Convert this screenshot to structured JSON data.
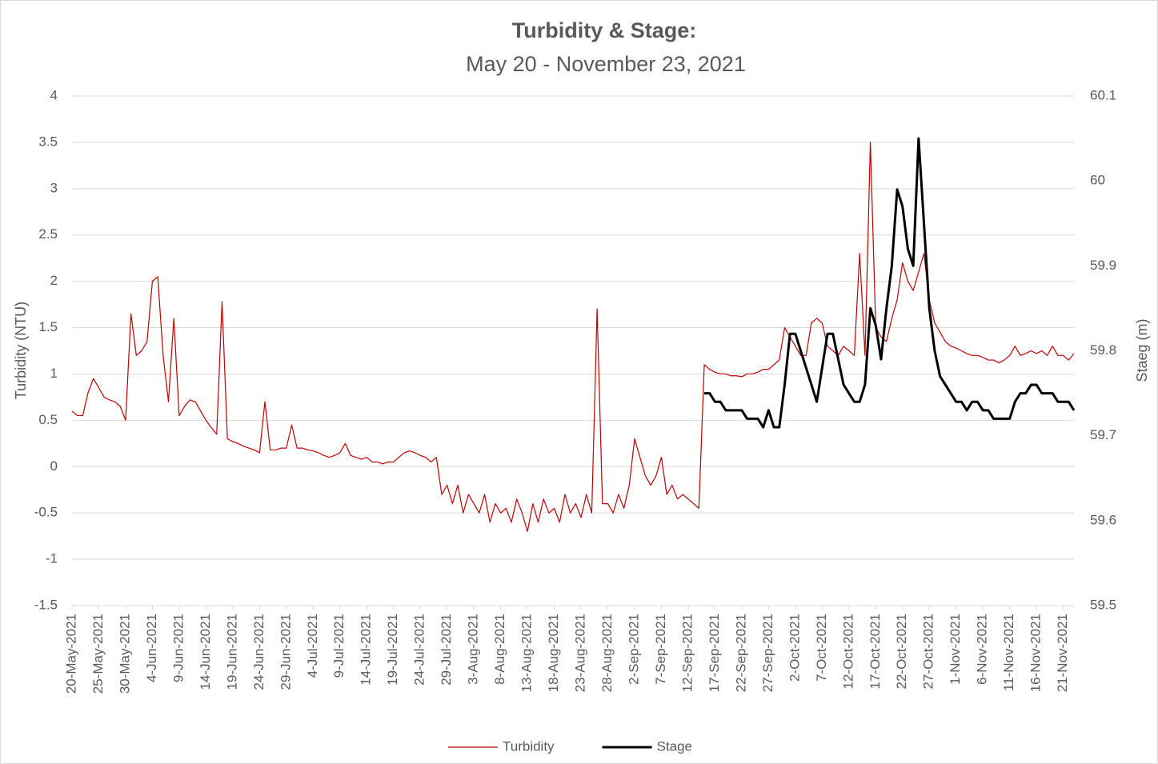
{
  "chart_data": {
    "type": "line",
    "title": "Turbidity & Stage:",
    "subtitle": "May 20 - November 23, 2021",
    "y_label": "Turbidity (NTU)",
    "y2_label": "Staeg (m)",
    "x": [
      "2021-05-20",
      "2021-05-21",
      "2021-05-22",
      "2021-05-23",
      "2021-05-24",
      "2021-05-25",
      "2021-05-26",
      "2021-05-27",
      "2021-05-28",
      "2021-05-29",
      "2021-05-30",
      "2021-05-31",
      "2021-06-01",
      "2021-06-02",
      "2021-06-03",
      "2021-06-04",
      "2021-06-05",
      "2021-06-06",
      "2021-06-07",
      "2021-06-08",
      "2021-06-09",
      "2021-06-10",
      "2021-06-11",
      "2021-06-12",
      "2021-06-13",
      "2021-06-14",
      "2021-06-15",
      "2021-06-16",
      "2021-06-17",
      "2021-06-18",
      "2021-06-19",
      "2021-06-20",
      "2021-06-21",
      "2021-06-22",
      "2021-06-23",
      "2021-06-24",
      "2021-06-25",
      "2021-06-26",
      "2021-06-27",
      "2021-06-28",
      "2021-06-29",
      "2021-06-30",
      "2021-07-01",
      "2021-07-02",
      "2021-07-03",
      "2021-07-04",
      "2021-07-05",
      "2021-07-06",
      "2021-07-07",
      "2021-07-08",
      "2021-07-09",
      "2021-07-10",
      "2021-07-11",
      "2021-07-12",
      "2021-07-13",
      "2021-07-14",
      "2021-07-15",
      "2021-07-16",
      "2021-07-17",
      "2021-07-18",
      "2021-07-19",
      "2021-07-20",
      "2021-07-21",
      "2021-07-22",
      "2021-07-23",
      "2021-07-24",
      "2021-07-25",
      "2021-07-26",
      "2021-07-27",
      "2021-07-28",
      "2021-07-29",
      "2021-07-30",
      "2021-07-31",
      "2021-08-01",
      "2021-08-02",
      "2021-08-03",
      "2021-08-04",
      "2021-08-05",
      "2021-08-06",
      "2021-08-07",
      "2021-08-08",
      "2021-08-09",
      "2021-08-10",
      "2021-08-11",
      "2021-08-12",
      "2021-08-13",
      "2021-08-14",
      "2021-08-15",
      "2021-08-16",
      "2021-08-17",
      "2021-08-18",
      "2021-08-19",
      "2021-08-20",
      "2021-08-21",
      "2021-08-22",
      "2021-08-23",
      "2021-08-24",
      "2021-08-25",
      "2021-08-26",
      "2021-08-27",
      "2021-08-28",
      "2021-08-29",
      "2021-08-30",
      "2021-08-31",
      "2021-09-01",
      "2021-09-02",
      "2021-09-03",
      "2021-09-04",
      "2021-09-05",
      "2021-09-06",
      "2021-09-07",
      "2021-09-08",
      "2021-09-09",
      "2021-09-10",
      "2021-09-11",
      "2021-09-12",
      "2021-09-13",
      "2021-09-14",
      "2021-09-15",
      "2021-09-16",
      "2021-09-17",
      "2021-09-18",
      "2021-09-19",
      "2021-09-20",
      "2021-09-21",
      "2021-09-22",
      "2021-09-23",
      "2021-09-24",
      "2021-09-25",
      "2021-09-26",
      "2021-09-27",
      "2021-09-28",
      "2021-09-29",
      "2021-09-30",
      "2021-10-01",
      "2021-10-02",
      "2021-10-03",
      "2021-10-04",
      "2021-10-05",
      "2021-10-06",
      "2021-10-07",
      "2021-10-08",
      "2021-10-09",
      "2021-10-10",
      "2021-10-11",
      "2021-10-12",
      "2021-10-13",
      "2021-10-14",
      "2021-10-15",
      "2021-10-16",
      "2021-10-17",
      "2021-10-18",
      "2021-10-19",
      "2021-10-20",
      "2021-10-21",
      "2021-10-22",
      "2021-10-23",
      "2021-10-24",
      "2021-10-25",
      "2021-10-26",
      "2021-10-27",
      "2021-10-28",
      "2021-10-29",
      "2021-10-30",
      "2021-10-31",
      "2021-11-01",
      "2021-11-02",
      "2021-11-03",
      "2021-11-04",
      "2021-11-05",
      "2021-11-06",
      "2021-11-07",
      "2021-11-08",
      "2021-11-09",
      "2021-11-10",
      "2021-11-11",
      "2021-11-12",
      "2021-11-13",
      "2021-11-14",
      "2021-11-15",
      "2021-11-16",
      "2021-11-17",
      "2021-11-18",
      "2021-11-19",
      "2021-11-20",
      "2021-11-21",
      "2021-11-22",
      "2021-11-23"
    ],
    "series": [
      {
        "name": "Turbidity",
        "color": "#c00000",
        "axis": "y",
        "values": [
          0.6,
          0.55,
          0.55,
          0.8,
          0.95,
          0.85,
          0.75,
          0.72,
          0.7,
          0.65,
          0.5,
          1.65,
          1.2,
          1.25,
          1.35,
          2.0,
          2.05,
          1.2,
          0.7,
          1.6,
          0.55,
          0.65,
          0.72,
          0.7,
          0.6,
          0.5,
          0.42,
          0.35,
          1.78,
          0.3,
          0.27,
          0.25,
          0.22,
          0.2,
          0.18,
          0.15,
          0.7,
          0.18,
          0.18,
          0.2,
          0.2,
          0.45,
          0.2,
          0.2,
          0.18,
          0.17,
          0.15,
          0.12,
          0.1,
          0.12,
          0.15,
          0.25,
          0.12,
          0.1,
          0.08,
          0.1,
          0.05,
          0.05,
          0.03,
          0.05,
          0.05,
          0.1,
          0.15,
          0.17,
          0.15,
          0.12,
          0.1,
          0.05,
          0.1,
          -0.3,
          -0.2,
          -0.4,
          -0.2,
          -0.5,
          -0.3,
          -0.4,
          -0.5,
          -0.3,
          -0.6,
          -0.4,
          -0.5,
          -0.45,
          -0.6,
          -0.35,
          -0.5,
          -0.7,
          -0.4,
          -0.6,
          -0.35,
          -0.5,
          -0.45,
          -0.6,
          -0.3,
          -0.5,
          -0.4,
          -0.55,
          -0.3,
          -0.5,
          1.7,
          -0.4,
          -0.4,
          -0.5,
          -0.3,
          -0.45,
          -0.2,
          0.3,
          0.1,
          -0.1,
          -0.2,
          -0.1,
          0.1,
          -0.3,
          -0.2,
          -0.35,
          -0.3,
          -0.35,
          -0.4,
          -0.45,
          1.1,
          1.05,
          1.02,
          1.0,
          1.0,
          0.98,
          0.98,
          0.97,
          1.0,
          1.0,
          1.02,
          1.05,
          1.05,
          1.1,
          1.15,
          1.5,
          1.4,
          1.3,
          1.2,
          1.2,
          1.55,
          1.6,
          1.55,
          1.3,
          1.25,
          1.2,
          1.3,
          1.25,
          1.2,
          2.3,
          1.2,
          3.5,
          1.5,
          1.4,
          1.35,
          1.6,
          1.8,
          2.2,
          2.0,
          1.9,
          2.1,
          2.3,
          1.8,
          1.55,
          1.45,
          1.35,
          1.3,
          1.28,
          1.25,
          1.22,
          1.2,
          1.2,
          1.18,
          1.15,
          1.15,
          1.12,
          1.15,
          1.2,
          1.3,
          1.2,
          1.22,
          1.25,
          1.22,
          1.25,
          1.2,
          1.3,
          1.2,
          1.2,
          1.15,
          1.22
        ]
      },
      {
        "name": "Stage",
        "color": "#000000",
        "axis": "y2",
        "values": [
          null,
          null,
          null,
          null,
          null,
          null,
          null,
          null,
          null,
          null,
          null,
          null,
          null,
          null,
          null,
          null,
          null,
          null,
          null,
          null,
          null,
          null,
          null,
          null,
          null,
          null,
          null,
          null,
          null,
          null,
          null,
          null,
          null,
          null,
          null,
          null,
          null,
          null,
          null,
          null,
          null,
          null,
          null,
          null,
          null,
          null,
          null,
          null,
          null,
          null,
          null,
          null,
          null,
          null,
          null,
          null,
          null,
          null,
          null,
          null,
          null,
          null,
          null,
          null,
          null,
          null,
          null,
          null,
          null,
          null,
          null,
          null,
          null,
          null,
          null,
          null,
          null,
          null,
          null,
          null,
          null,
          null,
          null,
          null,
          null,
          null,
          null,
          null,
          null,
          null,
          null,
          null,
          null,
          null,
          null,
          null,
          null,
          null,
          null,
          null,
          null,
          null,
          null,
          null,
          null,
          null,
          null,
          null,
          null,
          null,
          null,
          null,
          null,
          null,
          null,
          null,
          null,
          null,
          59.75,
          59.75,
          59.74,
          59.74,
          59.73,
          59.73,
          59.73,
          59.73,
          59.72,
          59.72,
          59.72,
          59.71,
          59.73,
          59.71,
          59.71,
          59.76,
          59.82,
          59.82,
          59.8,
          59.78,
          59.76,
          59.74,
          59.78,
          59.82,
          59.82,
          59.79,
          59.76,
          59.75,
          59.74,
          59.74,
          59.76,
          59.85,
          59.83,
          59.79,
          59.85,
          59.9,
          59.99,
          59.97,
          59.92,
          59.9,
          60.05,
          59.95,
          59.85,
          59.8,
          59.77,
          59.76,
          59.75,
          59.74,
          59.74,
          59.73,
          59.74,
          59.74,
          59.73,
          59.73,
          59.72,
          59.72,
          59.72,
          59.72,
          59.74,
          59.75,
          59.75,
          59.76,
          59.76,
          59.75,
          59.75,
          59.75,
          59.74,
          59.74,
          59.74,
          59.73
        ]
      }
    ],
    "xlim": [
      "2021-05-20",
      "2021-11-23"
    ],
    "xticks": [
      {
        "value": "2021-05-20",
        "label": "20-May-2021"
      },
      {
        "value": "2021-05-25",
        "label": "25-May-2021"
      },
      {
        "value": "2021-05-30",
        "label": "30-May-2021"
      },
      {
        "value": "2021-06-04",
        "label": "4-Jun-2021"
      },
      {
        "value": "2021-06-09",
        "label": "9-Jun-2021"
      },
      {
        "value": "2021-06-14",
        "label": "14-Jun-2021"
      },
      {
        "value": "2021-06-19",
        "label": "19-Jun-2021"
      },
      {
        "value": "2021-06-24",
        "label": "24-Jun-2021"
      },
      {
        "value": "2021-06-29",
        "label": "29-Jun-2021"
      },
      {
        "value": "2021-07-04",
        "label": "4-Jul-2021"
      },
      {
        "value": "2021-07-09",
        "label": "9-Jul-2021"
      },
      {
        "value": "2021-07-14",
        "label": "14-Jul-2021"
      },
      {
        "value": "2021-07-19",
        "label": "19-Jul-2021"
      },
      {
        "value": "2021-07-24",
        "label": "24-Jul-2021"
      },
      {
        "value": "2021-07-29",
        "label": "29-Jul-2021"
      },
      {
        "value": "2021-08-03",
        "label": "3-Aug-2021"
      },
      {
        "value": "2021-08-08",
        "label": "8-Aug-2021"
      },
      {
        "value": "2021-08-13",
        "label": "13-Aug-2021"
      },
      {
        "value": "2021-08-18",
        "label": "18-Aug-2021"
      },
      {
        "value": "2021-08-23",
        "label": "23-Aug-2021"
      },
      {
        "value": "2021-08-28",
        "label": "28-Aug-2021"
      },
      {
        "value": "2021-09-02",
        "label": "2-Sep-2021"
      },
      {
        "value": "2021-09-07",
        "label": "7-Sep-2021"
      },
      {
        "value": "2021-09-12",
        "label": "12-Sep-2021"
      },
      {
        "value": "2021-09-17",
        "label": "17-Sep-2021"
      },
      {
        "value": "2021-09-22",
        "label": "22-Sep-2021"
      },
      {
        "value": "2021-09-27",
        "label": "27-Sep-2021"
      },
      {
        "value": "2021-10-02",
        "label": "2-Oct-2021"
      },
      {
        "value": "2021-10-07",
        "label": "7-Oct-2021"
      },
      {
        "value": "2021-10-12",
        "label": "12-Oct-2021"
      },
      {
        "value": "2021-10-17",
        "label": "17-Oct-2021"
      },
      {
        "value": "2021-10-22",
        "label": "22-Oct-2021"
      },
      {
        "value": "2021-10-27",
        "label": "27-Oct-2021"
      },
      {
        "value": "2021-11-01",
        "label": "1-Nov-2021"
      },
      {
        "value": "2021-11-06",
        "label": "6-Nov-2021"
      },
      {
        "value": "2021-11-11",
        "label": "11-Nov-2021"
      },
      {
        "value": "2021-11-16",
        "label": "16-Nov-2021"
      },
      {
        "value": "2021-11-21",
        "label": "21-Nov-2021"
      }
    ],
    "ylim": [
      -1.5,
      4
    ],
    "yticks": [
      -1.5,
      -1,
      -0.5,
      0,
      0.5,
      1,
      1.5,
      2,
      2.5,
      3,
      3.5,
      4
    ],
    "y2lim": [
      59.5,
      60.1
    ],
    "y2ticks": [
      59.5,
      59.6,
      59.7,
      59.8,
      59.9,
      60,
      60.1
    ],
    "grid": true,
    "legend": "bottom"
  }
}
